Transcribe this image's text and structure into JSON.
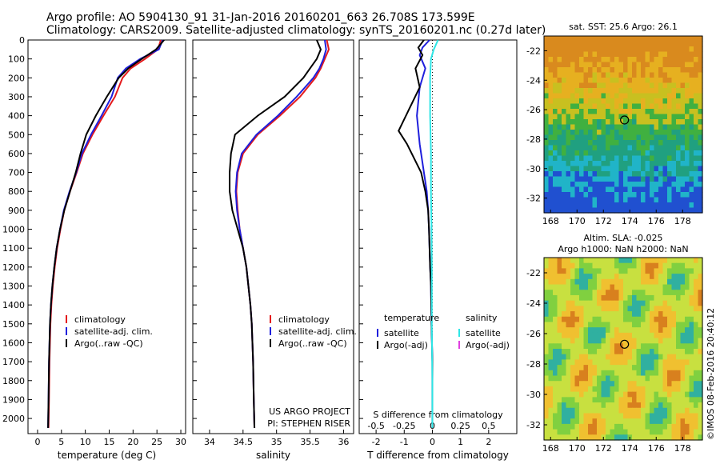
{
  "header": {
    "line1": "Argo profile: AO 5904130_91 31-Jan-2016 20160201_663 26.708S 173.599E",
    "line2": "Climatology: CARS2009. Satellite-adjusted climatology: synTS_20160201.nc (0.27d later)"
  },
  "credit": "©IMOS 08-Feb-2016 20:40:12",
  "colors": {
    "climatology": "#e41a1c",
    "satellite": "#1f1fdc",
    "argo": "#000000",
    "sal_satellite": "#2ee6e6",
    "sal_argo": "#e040e0"
  },
  "chart_data": [
    {
      "type": "line",
      "panel": "temperature",
      "xlabel": "temperature (deg C)",
      "xlim": [
        -2,
        31
      ],
      "ylim": [
        2080,
        0
      ],
      "xticks": [
        0,
        5,
        10,
        15,
        20,
        25,
        30
      ],
      "yticks": [
        0,
        100,
        200,
        300,
        400,
        500,
        600,
        700,
        800,
        900,
        1000,
        1100,
        1200,
        1300,
        1400,
        1500,
        1600,
        1700,
        1800,
        1900,
        2000
      ],
      "legend_position": "lower-center",
      "series": [
        {
          "name": "climatology",
          "color": "#e41a1c",
          "x": [
            25.8,
            25.2,
            22.5,
            19.5,
            17.8,
            16.2,
            13.8,
            11.5,
            9.5,
            8.2,
            6.8,
            5.6,
            4.8,
            4.1,
            3.6,
            3.2,
            2.9,
            2.7,
            2.5,
            2.4,
            2.3
          ],
          "y": [
            0,
            50,
            100,
            150,
            200,
            300,
            400,
            500,
            600,
            700,
            800,
            900,
            1000,
            1100,
            1200,
            1300,
            1400,
            1500,
            1700,
            1900,
            2050
          ]
        },
        {
          "name": "satellite-adj. clim.",
          "color": "#1f1fdc",
          "x": [
            26.2,
            25.4,
            21.5,
            18.5,
            16.8,
            15.5,
            13.4,
            11.2,
            9.3,
            8.1,
            6.7,
            5.5,
            4.7,
            4.0,
            3.5,
            3.1,
            2.8,
            2.6,
            2.4,
            2.3,
            2.2
          ],
          "y": [
            0,
            50,
            100,
            150,
            200,
            300,
            400,
            500,
            600,
            700,
            800,
            900,
            1000,
            1100,
            1200,
            1300,
            1400,
            1500,
            1700,
            1900,
            2050
          ]
        },
        {
          "name": "Argo(..raw -QC)",
          "color": "#000000",
          "x": [
            26.5,
            24.8,
            21.8,
            19.0,
            17.0,
            14.5,
            12.2,
            10.2,
            9.0,
            8.0,
            6.8,
            5.6,
            4.7,
            4.0,
            3.5,
            3.1,
            2.8,
            2.6,
            2.4,
            2.3,
            2.2
          ],
          "y": [
            0,
            50,
            100,
            150,
            200,
            300,
            400,
            500,
            600,
            700,
            800,
            900,
            1000,
            1100,
            1200,
            1300,
            1400,
            1500,
            1700,
            1900,
            2050
          ]
        }
      ]
    },
    {
      "type": "line",
      "panel": "salinity",
      "xlabel": "salinity",
      "xlim": [
        33.75,
        36.15
      ],
      "ylim": [
        2080,
        0
      ],
      "xticks": [
        34,
        34.5,
        35,
        35.5,
        36
      ],
      "annotation": [
        "US ARGO PROJECT",
        "PI: STEPHEN RISER"
      ],
      "legend_position": "lower-center",
      "series": [
        {
          "name": "climatology",
          "color": "#e41a1c",
          "x": [
            35.75,
            35.78,
            35.72,
            35.66,
            35.58,
            35.35,
            35.05,
            34.72,
            34.5,
            34.42,
            34.4,
            34.42,
            34.45,
            34.5,
            34.55,
            34.58,
            34.61,
            34.63,
            34.65,
            34.66,
            34.67
          ],
          "y": [
            0,
            50,
            100,
            150,
            200,
            300,
            400,
            500,
            600,
            700,
            800,
            900,
            1000,
            1100,
            1200,
            1300,
            1400,
            1500,
            1700,
            1900,
            2050
          ]
        },
        {
          "name": "satellite-adj. clim.",
          "color": "#1f1fdc",
          "x": [
            35.72,
            35.74,
            35.7,
            35.64,
            35.55,
            35.3,
            35.02,
            34.7,
            34.48,
            34.41,
            34.39,
            34.41,
            34.45,
            34.5,
            34.55,
            34.58,
            34.61,
            34.63,
            34.65,
            34.66,
            34.67
          ],
          "y": [
            0,
            50,
            100,
            150,
            200,
            300,
            400,
            500,
            600,
            700,
            800,
            900,
            1000,
            1100,
            1200,
            1300,
            1400,
            1500,
            1700,
            1900,
            2050
          ]
        },
        {
          "name": "Argo(..raw -QC)",
          "color": "#000000",
          "x": [
            35.6,
            35.66,
            35.6,
            35.5,
            35.4,
            35.12,
            34.72,
            34.38,
            34.32,
            34.3,
            34.3,
            34.34,
            34.42,
            34.5,
            34.55,
            34.58,
            34.61,
            34.63,
            34.65,
            34.66,
            34.67
          ],
          "y": [
            0,
            50,
            100,
            150,
            200,
            300,
            400,
            500,
            600,
            700,
            800,
            900,
            1000,
            1100,
            1200,
            1300,
            1400,
            1500,
            1700,
            1900,
            2050
          ]
        }
      ]
    },
    {
      "type": "line",
      "panel": "difference",
      "xlabel": "T difference from climatology",
      "xlabel_top": "S difference from climatology",
      "xlim": [
        -2.6,
        3.0
      ],
      "ylim": [
        2080,
        0
      ],
      "xticks": [
        -2,
        -1,
        0,
        1,
        2
      ],
      "xticks_top": [
        "-0.5",
        "-0.25",
        "0",
        "0.25",
        "0.5"
      ],
      "legend_position": "lower-center",
      "legend_headers": [
        "temperature",
        "salinity"
      ],
      "series": [
        {
          "name": "satellite",
          "group": "temperature",
          "color": "#1f1fdc",
          "x": [
            -0.1,
            -0.35,
            -0.45,
            -0.25,
            -0.45,
            -0.55,
            -0.45,
            -0.3,
            -0.2,
            -0.15,
            -0.12,
            -0.1,
            -0.08,
            -0.05,
            -0.03,
            0,
            0
          ],
          "y": [
            0,
            40,
            80,
            150,
            250,
            400,
            550,
            700,
            800,
            900,
            1000,
            1100,
            1200,
            1300,
            1500,
            1700,
            2050
          ]
        },
        {
          "name": "Argo(-adj)",
          "group": "temperature",
          "color": "#000000",
          "x": [
            -0.3,
            -0.5,
            -0.35,
            -0.6,
            -0.45,
            -1.2,
            -0.9,
            -0.4,
            -0.25,
            -0.15,
            -0.12,
            -0.1,
            -0.08,
            -0.05,
            -0.03,
            0,
            0
          ],
          "y": [
            0,
            40,
            80,
            150,
            250,
            480,
            550,
            700,
            800,
            900,
            1000,
            1100,
            1200,
            1300,
            1500,
            1700,
            2050
          ]
        },
        {
          "name": "satellite",
          "group": "salinity",
          "color": "#2ee6e6",
          "x": [
            0.2,
            0.05,
            -0.05,
            -0.08,
            -0.08,
            -0.05,
            -0.05,
            -0.03,
            -0.02,
            -0.02,
            0,
            0
          ],
          "y": [
            0,
            50,
            100,
            200,
            400,
            600,
            800,
            1000,
            1200,
            1500,
            1800,
            2050
          ]
        },
        {
          "name": "Argo(-adj)",
          "group": "salinity",
          "color": "#e040e0",
          "x": [],
          "y": []
        }
      ]
    },
    {
      "type": "heatmap",
      "panel": "sst_map",
      "title": "sat. SST: 25.6 Argo: 26.1",
      "xlim": [
        167.5,
        179.5
      ],
      "ylim": [
        -33,
        -21
      ],
      "xticks": [
        168,
        170,
        172,
        174,
        176,
        178
      ],
      "yticks": [
        -22,
        -24,
        -26,
        -28,
        -30,
        -32
      ],
      "marker": {
        "lon": 173.6,
        "lat": -26.7
      }
    },
    {
      "type": "heatmap",
      "panel": "sla_map",
      "title_lines": [
        "Altim. SLA: -0.025",
        "Argo h1000: NaN h2000: NaN"
      ],
      "xlim": [
        167.5,
        179.5
      ],
      "ylim": [
        -33,
        -21
      ],
      "xticks": [
        168,
        170,
        172,
        174,
        176,
        178
      ],
      "yticks": [
        -22,
        -24,
        -26,
        -28,
        -30,
        -32
      ],
      "marker": {
        "lon": 173.6,
        "lat": -26.7
      }
    }
  ]
}
